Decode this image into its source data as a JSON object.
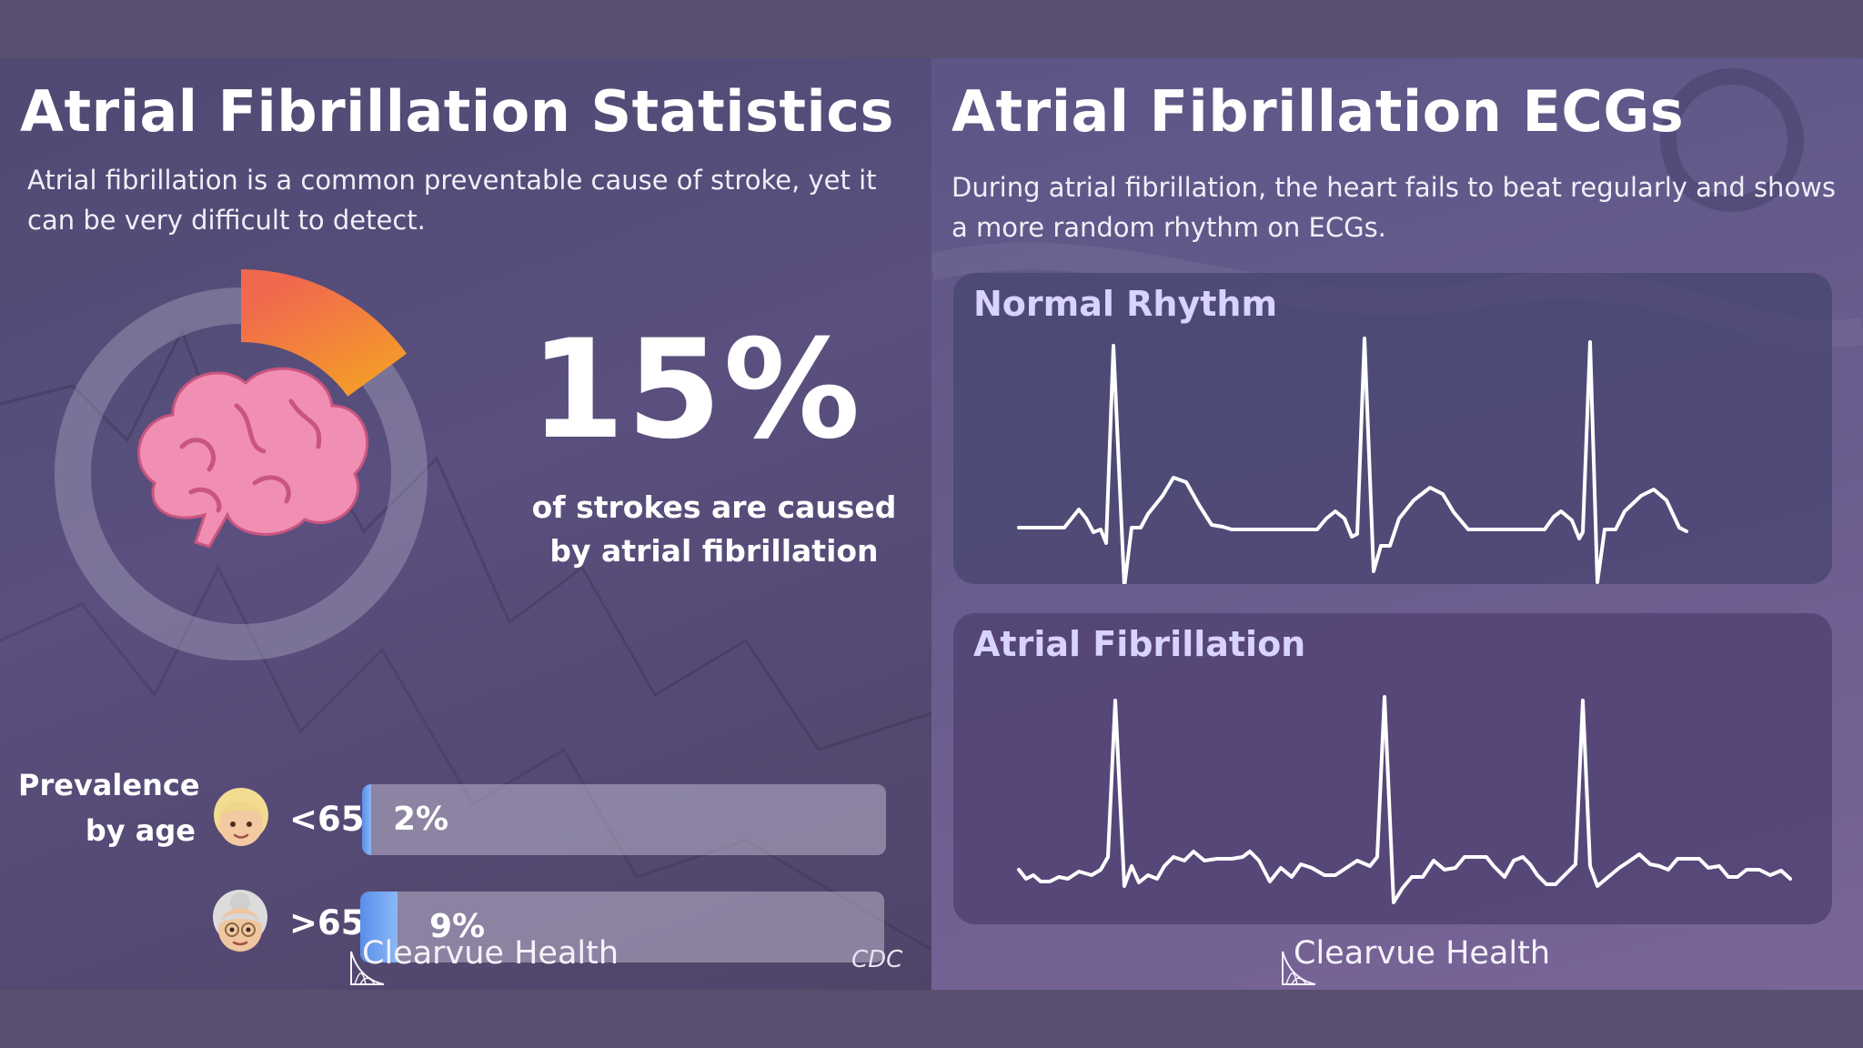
{
  "left": {
    "title": "Atrial Fibrillation Statistics",
    "subtitle": "Atrial fibrillation is a common preventable cause of stroke, yet it can be very difficult to detect.",
    "stat": {
      "value": "15%",
      "fraction": 0.15,
      "caption": "of strokes are caused by atrial fibrillation",
      "ring_color": "#f07a45",
      "icon": "brain-icon"
    },
    "prevalence": {
      "label": "Prevalence by age",
      "rows": [
        {
          "age": "<65",
          "value_text": "2%",
          "fraction": 0.02,
          "icon": "young-person-icon"
        },
        {
          "age": ">65",
          "value_text": "9%",
          "fraction": 0.09,
          "icon": "older-woman-icon"
        }
      ]
    },
    "brand": "Clearvue Health",
    "source": "CDC"
  },
  "right": {
    "title": "Atrial Fibrillation ECGs",
    "subtitle": "During atrial fibrillation, the heart fails to beat regularly and shows a more random rhythm on ECGs.",
    "cards": [
      {
        "title": "Normal Rhythm"
      },
      {
        "title": "Atrial Fibrillation"
      }
    ],
    "brand": "Clearvue Health"
  },
  "colors": {
    "accent_orange": "#f07a45",
    "bar_blue": "#5a8eea",
    "card_title": "#d9d3ff"
  }
}
